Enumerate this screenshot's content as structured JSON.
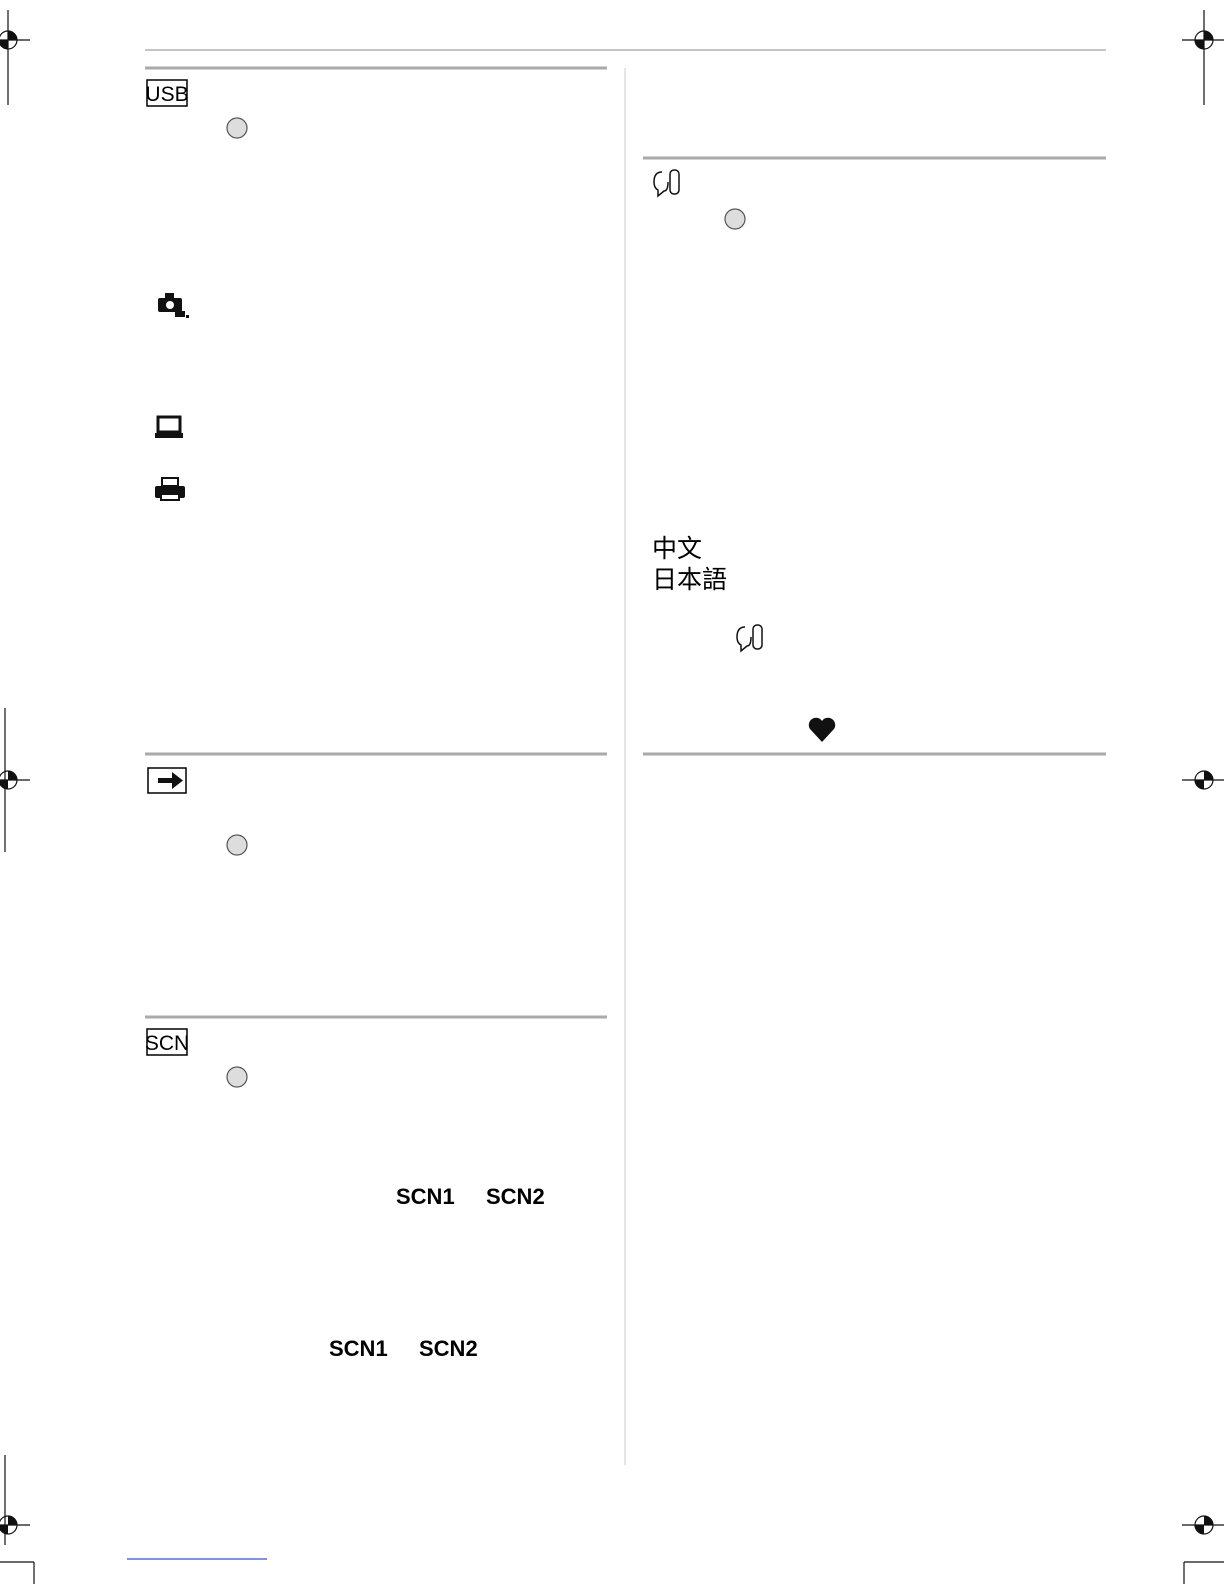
{
  "sections": {
    "usb": {
      "icon": "USB"
    },
    "scene": {
      "icon": "SCN",
      "line1": [
        "SCN1",
        "SCN2"
      ],
      "line2": [
        "SCN1",
        "SCN2"
      ]
    },
    "language": {
      "options": [
        "中文",
        "日本語"
      ]
    }
  }
}
